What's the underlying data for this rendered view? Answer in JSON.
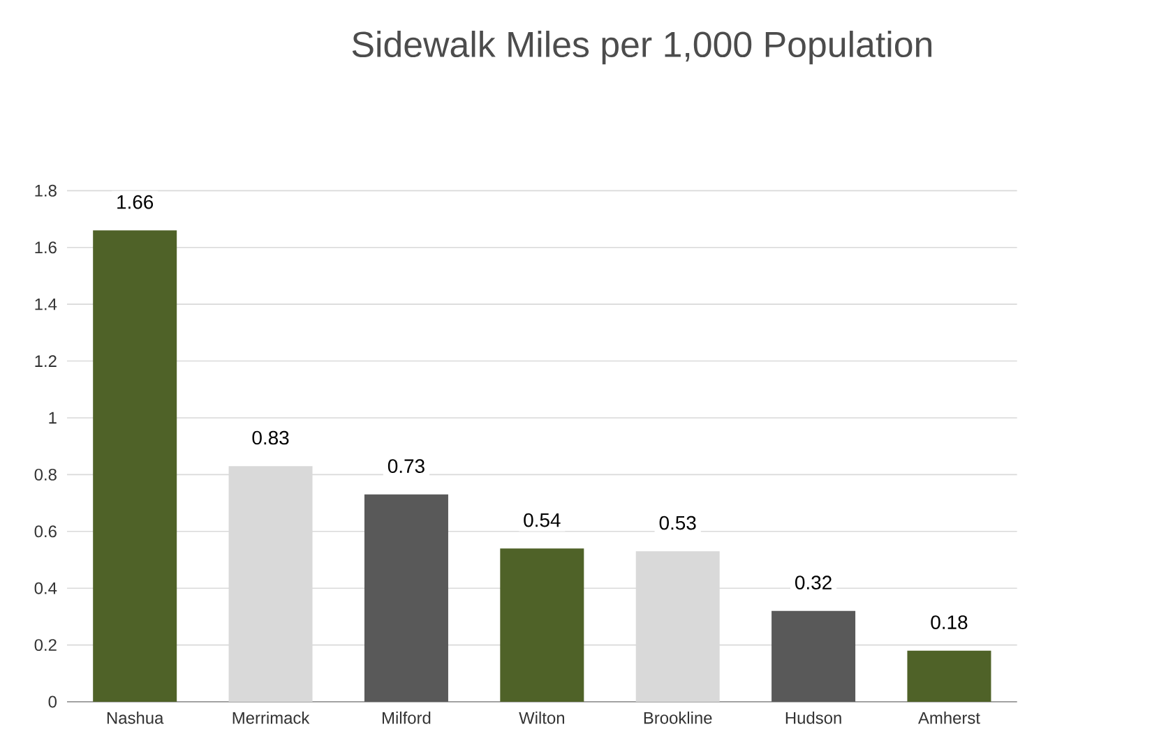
{
  "chart_data": {
    "type": "bar",
    "title": "Sidewalk Miles per 1,000 Population",
    "categories": [
      "Nashua",
      "Merrimack",
      "Milford",
      "Wilton",
      "Brookline",
      "Hudson",
      "Amherst"
    ],
    "values": [
      1.66,
      0.83,
      0.73,
      0.54,
      0.53,
      0.32,
      0.18
    ],
    "colors": [
      "#4f6228",
      "#d9d9d9",
      "#595959",
      "#4f6228",
      "#d9d9d9",
      "#595959",
      "#4f6228"
    ],
    "ylim": [
      0,
      1.8
    ],
    "yticks": [
      0,
      0.2,
      0.4,
      0.6,
      0.8,
      1,
      1.2,
      1.4,
      1.6,
      1.8
    ],
    "grid": "y",
    "data_labels": true
  }
}
